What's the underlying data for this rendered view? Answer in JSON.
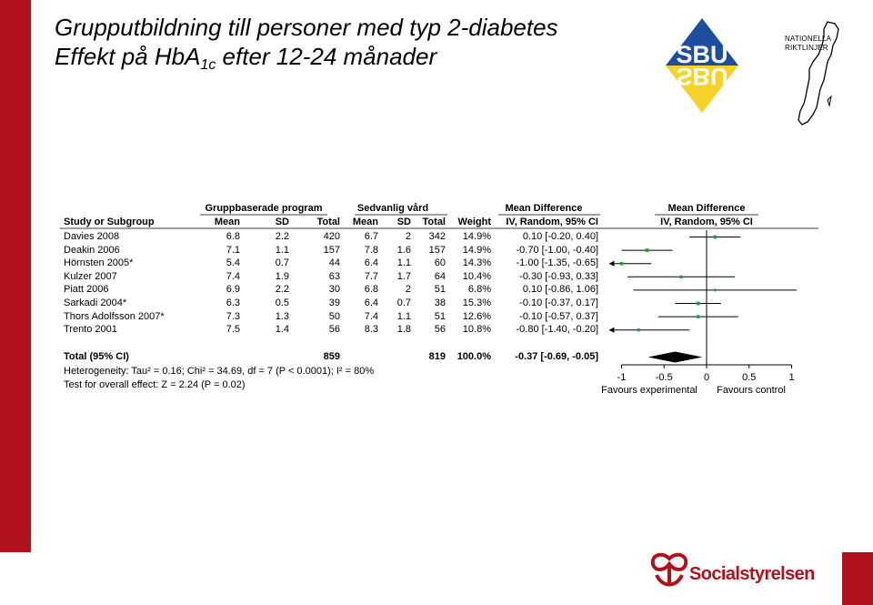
{
  "slide": {
    "title_line1": "Grupputbildning till personer med typ 2-diabetes",
    "title_line2_pre": "Effekt på HbA",
    "title_line2_sub": "1c",
    "title_line2_post": " efter 12-24 månader"
  },
  "logos": {
    "sbu_top": "SBU",
    "sbu_bottom": "SBU",
    "nr_line1": "NATIONELLA",
    "nr_line2": "RIKTLINJER",
    "socialstyrelsen": "Socialstyrelsen"
  },
  "colors": {
    "accent_red": "#b0121b",
    "sbu_blue": "#1d4e9e",
    "sbu_yellow": "#f6d22a",
    "point_green": "#18a340"
  },
  "chart_data": {
    "type": "forest",
    "group_headers": {
      "experimental": "Gruppbaserade program",
      "control": "Sedvanlig vård",
      "md_table": "Mean Difference",
      "md_plot": "Mean Difference"
    },
    "columns": {
      "study": "Study or Subgroup",
      "e_mean": "Mean",
      "e_sd": "SD",
      "e_total": "Total",
      "c_mean": "Mean",
      "c_sd": "SD",
      "c_total": "Total",
      "weight": "Weight",
      "md": "IV, Random, 95% CI",
      "plot": "IV, Random, 95% CI"
    },
    "studies": [
      {
        "name": "Davies 2008",
        "e_mean": "6.8",
        "e_sd": "2.2",
        "e_total": "420",
        "c_mean": "6.7",
        "c_sd": "2",
        "c_total": "342",
        "weight": "14.9%",
        "md_text": "0.10 [-0.20, 0.40]",
        "md": 0.1,
        "lo": -0.2,
        "hi": 0.4,
        "w": 14.9
      },
      {
        "name": "Deakin 2006",
        "e_mean": "7.1",
        "e_sd": "1.1",
        "e_total": "157",
        "c_mean": "7.8",
        "c_sd": "1.6",
        "c_total": "157",
        "weight": "14.9%",
        "md_text": "-0.70 [-1.00, -0.40]",
        "md": -0.7,
        "lo": -1.0,
        "hi": -0.4,
        "w": 14.9
      },
      {
        "name": "Hörnsten 2005*",
        "e_mean": "5.4",
        "e_sd": "0.7",
        "e_total": "44",
        "c_mean": "6.4",
        "c_sd": "1.1",
        "c_total": "60",
        "weight": "14.3%",
        "md_text": "-1.00 [-1.35, -0.65]",
        "md": -1.0,
        "lo": -1.35,
        "hi": -0.65,
        "w": 14.3
      },
      {
        "name": "Kulzer 2007",
        "e_mean": "7.4",
        "e_sd": "1.9",
        "e_total": "63",
        "c_mean": "7.7",
        "c_sd": "1.7",
        "c_total": "64",
        "weight": "10.4%",
        "md_text": "-0.30 [-0.93, 0.33]",
        "md": -0.3,
        "lo": -0.93,
        "hi": 0.33,
        "w": 10.4
      },
      {
        "name": "Piatt 2006",
        "e_mean": "6.9",
        "e_sd": "2.2",
        "e_total": "30",
        "c_mean": "6.8",
        "c_sd": "2",
        "c_total": "51",
        "weight": "6.8%",
        "md_text": "0.10 [-0.86, 1.06]",
        "md": 0.1,
        "lo": -0.86,
        "hi": 1.06,
        "w": 6.8
      },
      {
        "name": "Sarkadi 2004*",
        "e_mean": "6.3",
        "e_sd": "0.5",
        "e_total": "39",
        "c_mean": "6.4",
        "c_sd": "0.7",
        "c_total": "38",
        "weight": "15.3%",
        "md_text": "-0.10 [-0.37, 0.17]",
        "md": -0.1,
        "lo": -0.37,
        "hi": 0.17,
        "w": 15.3
      },
      {
        "name": "Thors Adolfsson 2007*",
        "e_mean": "7.3",
        "e_sd": "1.3",
        "e_total": "50",
        "c_mean": "7.4",
        "c_sd": "1.1",
        "c_total": "51",
        "weight": "12.6%",
        "md_text": "-0.10 [-0.57, 0.37]",
        "md": -0.1,
        "lo": -0.57,
        "hi": 0.37,
        "w": 12.6
      },
      {
        "name": "Trento 2001",
        "e_mean": "7.5",
        "e_sd": "1.4",
        "e_total": "56",
        "c_mean": "8.3",
        "c_sd": "1.8",
        "c_total": "56",
        "weight": "10.8%",
        "md_text": "-0.80 [-1.40, -0.20]",
        "md": -0.8,
        "lo": -1.4,
        "hi": -0.2,
        "w": 10.8
      }
    ],
    "total": {
      "name": "Total (95% CI)",
      "e_total": "859",
      "c_total": "819",
      "weight": "100.0%",
      "md_text": "-0.37 [-0.69, -0.05]",
      "md": -0.37,
      "lo": -0.69,
      "hi": -0.05
    },
    "heterogeneity": "Heterogeneity: Tau² = 0.16; Chi² = 34.69, df = 7 (P < 0.0001); I² = 80%",
    "overall_test": "Test for overall effect: Z = 2.24 (P = 0.02)",
    "xlim": [
      -1,
      1
    ],
    "xticks": [
      -1,
      -0.5,
      0,
      0.5,
      1
    ],
    "xtick_labels": [
      "-1",
      "-0.5",
      "0",
      "0.5",
      "1"
    ],
    "favours_left": "Favours experimental",
    "favours_right": "Favours control"
  }
}
